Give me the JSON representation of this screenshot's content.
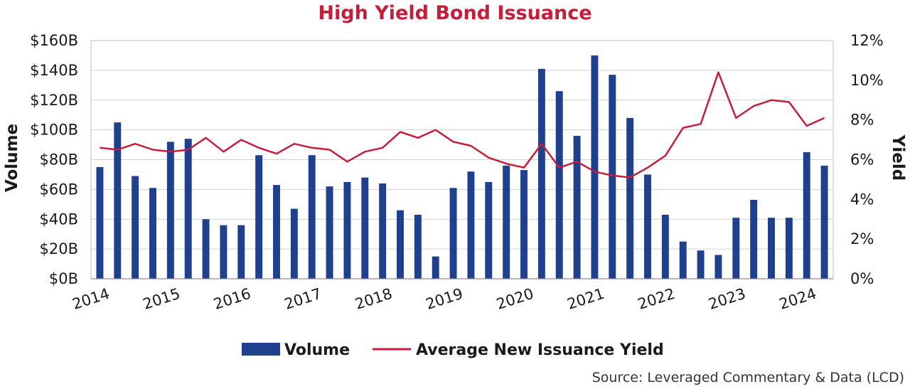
{
  "chart_data": {
    "type": "bar+line",
    "title": "High Yield Bond Issuance",
    "ylabel_left": "Volume",
    "ylabel_right": "Yield",
    "ylim_left": [
      0,
      160
    ],
    "ylim_right": [
      0,
      12
    ],
    "left_ticks": [
      "$0B",
      "$20B",
      "$40B",
      "$60B",
      "$80B",
      "$100B",
      "$120B",
      "$140B",
      "$160B"
    ],
    "right_ticks": [
      "0%",
      "2%",
      "4%",
      "6%",
      "8%",
      "10%",
      "12%"
    ],
    "year_labels": [
      "2014",
      "2015",
      "2016",
      "2017",
      "2018",
      "2019",
      "2020",
      "2021",
      "2022",
      "2023",
      "2024"
    ],
    "periods_per_year": 4,
    "grid": true,
    "legend_position": "bottom",
    "series": [
      {
        "name": "Volume",
        "type": "bar",
        "axis": "left",
        "color": "#1f3f8f",
        "values": [
          75,
          105,
          69,
          61,
          92,
          94,
          40,
          36,
          36,
          83,
          63,
          47,
          83,
          62,
          65,
          68,
          64,
          46,
          43,
          15,
          61,
          72,
          65,
          76,
          73,
          141,
          126,
          96,
          150,
          137,
          108,
          70,
          43,
          25,
          19,
          16,
          41,
          53,
          41,
          41,
          85,
          76
        ]
      },
      {
        "name": "Average New Issuance Yield",
        "type": "line",
        "axis": "right",
        "color": "#c41e3a",
        "values": [
          6.6,
          6.5,
          6.8,
          6.5,
          6.4,
          6.5,
          7.1,
          6.4,
          7.0,
          6.6,
          6.3,
          6.8,
          6.6,
          6.5,
          5.9,
          6.4,
          6.6,
          7.4,
          7.1,
          7.5,
          6.9,
          6.7,
          6.1,
          5.8,
          5.6,
          6.8,
          5.6,
          5.9,
          5.4,
          5.2,
          5.1,
          5.6,
          6.2,
          7.6,
          7.8,
          10.4,
          8.1,
          8.7,
          9.0,
          8.9,
          7.7,
          8.1
        ]
      }
    ],
    "source": "Source: Leveraged Commentary & Data (LCD)"
  }
}
